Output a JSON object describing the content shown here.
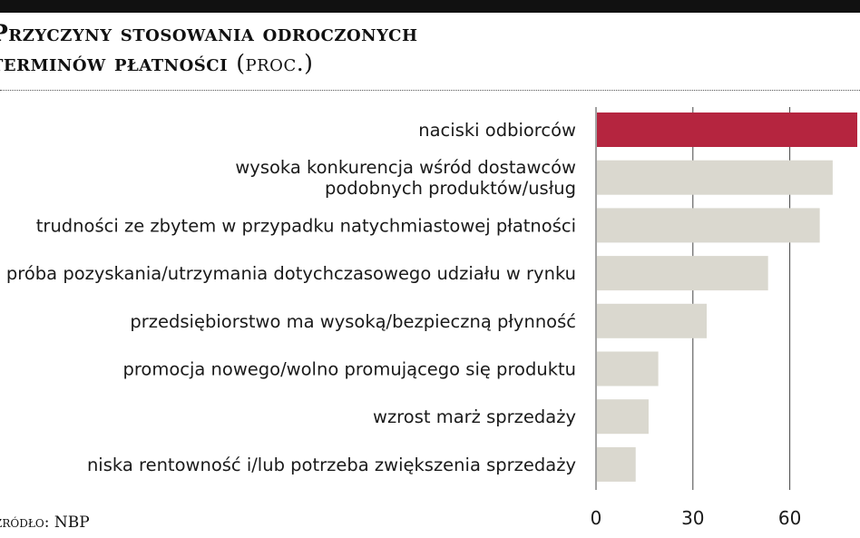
{
  "header": {
    "title_line1": "Przyczyny stosowania odroczonych",
    "title_line2": "terminów płatności",
    "title_unit": "(proc.)"
  },
  "footer": {
    "source": "źródło: NBP"
  },
  "colors": {
    "highlight": "#b5253f",
    "bar": "#dad8cf",
    "gridline": "#444444"
  },
  "chart_data": {
    "type": "bar",
    "orientation": "horizontal",
    "categories": [
      [
        "naciski odbiorców"
      ],
      [
        "wysoka konkurencja wśród dostawców",
        "podobnych produktów/usług"
      ],
      [
        "trudności ze zbytem w przypadku natychmiastowej płatności"
      ],
      [
        "próba pozyskania/utrzymania dotychczasowego udziału w rynku"
      ],
      [
        "przedsiębiorstwo ma wysoką/bezpieczną płynność"
      ],
      [
        "promocja nowego/wolno promującego się produktu"
      ],
      [
        "wzrost marż sprzedaży"
      ],
      [
        "niska rentowność i/lub potrzeba zwiększenia sprzedaży"
      ]
    ],
    "values": [
      81,
      73,
      69,
      53,
      34,
      19,
      16,
      12
    ],
    "highlight_index": 0,
    "xticks": [
      0,
      30,
      60
    ],
    "xlim": [
      0,
      81
    ],
    "grid": true
  }
}
